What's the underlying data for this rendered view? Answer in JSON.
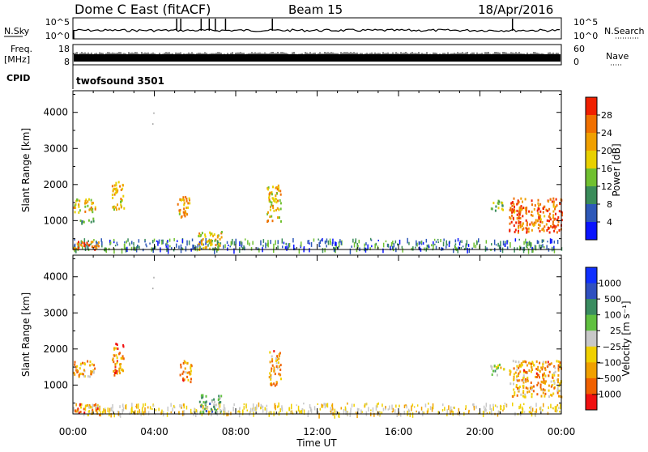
{
  "header": {
    "title": "Dome C East (fitACF)",
    "beam": "Beam 15",
    "date": "18/Apr/2016"
  },
  "strips": {
    "nsky_label": "N.Sky",
    "nsky_ticks": [
      "10^5",
      "10^0"
    ],
    "nsearch_label": "N.Search",
    "nsearch_ticks": [
      "10^5",
      "10^0"
    ],
    "freq_label": "Freq.",
    "freq_unit": "[MHz]",
    "freq_ticks": [
      "18",
      "8"
    ],
    "nave_label": "Nave",
    "nave_ticks": [
      "60",
      "0"
    ],
    "cpid_label": "CPID",
    "cpid_value": "twofsound 3501"
  },
  "chart_data": [
    {
      "type": "heatmap",
      "name": "power",
      "ylabel": "Slant Range [km]",
      "ylim": [
        200,
        4600
      ],
      "yticks": [
        "1000",
        "2000",
        "3000",
        "4000"
      ],
      "colorbar_label": "Power [dB]",
      "colorbar_ticks": [
        "4",
        "8",
        "12",
        "16",
        "20",
        "24",
        "28"
      ],
      "colorbar_colors": [
        "#0a14ff",
        "#2e58b8",
        "#3a8c5a",
        "#70c030",
        "#e8d000",
        "#f0a000",
        "#f07000",
        "#f02000"
      ],
      "patches": [
        {
          "t0": 0.0,
          "t1": 1.3,
          "r0": 200,
          "r1": 450,
          "level": 0.85
        },
        {
          "t0": 0.0,
          "t1": 1.1,
          "r0": 1250,
          "r1": 1650,
          "level": 0.6
        },
        {
          "t0": 0.3,
          "t1": 1.0,
          "r0": 950,
          "r1": 1100,
          "level": 0.35
        },
        {
          "t0": 1.9,
          "t1": 2.5,
          "r0": 1300,
          "r1": 2100,
          "level": 0.65
        },
        {
          "t0": 5.1,
          "t1": 5.8,
          "r0": 1100,
          "r1": 1700,
          "level": 0.7
        },
        {
          "t0": 6.1,
          "t1": 7.3,
          "r0": 200,
          "r1": 750,
          "level": 0.6
        },
        {
          "t0": 9.5,
          "t1": 10.2,
          "r0": 1000,
          "r1": 2000,
          "level": 0.65
        },
        {
          "t0": 20.5,
          "t1": 21.2,
          "r0": 1300,
          "r1": 1600,
          "level": 0.4
        },
        {
          "t0": 21.4,
          "t1": 24.0,
          "r0": 700,
          "r1": 1650,
          "level": 0.85
        }
      ]
    },
    {
      "type": "heatmap",
      "name": "velocity",
      "ylabel": "Slant Range [km]",
      "ylim": [
        200,
        4600
      ],
      "yticks": [
        "1000",
        "2000",
        "3000",
        "4000"
      ],
      "colorbar_label": "Velocity [m s⁻¹]",
      "colorbar_ticks": [
        "1000",
        "500",
        "100",
        "25",
        "−25",
        "−100",
        "−500",
        "−1000"
      ],
      "colorbar_colors": [
        "#1030ff",
        "#3050c0",
        "#3a8c60",
        "#60c040",
        "#c8c8c8",
        "#f0d000",
        "#f0a000",
        "#f06000",
        "#f01010"
      ],
      "patches": [
        {
          "t0": 0.0,
          "t1": 1.3,
          "r0": 200,
          "r1": 500,
          "level": 0.75
        },
        {
          "t0": 0.0,
          "t1": 1.1,
          "r0": 1250,
          "r1": 1700,
          "level": 0.7
        },
        {
          "t0": 1.9,
          "t1": 2.5,
          "r0": 1300,
          "r1": 2200,
          "level": 0.8
        },
        {
          "t0": 5.2,
          "t1": 5.8,
          "r0": 1100,
          "r1": 1700,
          "level": 0.75
        },
        {
          "t0": 6.2,
          "t1": 7.3,
          "r0": 250,
          "r1": 750,
          "level": 0.35
        },
        {
          "t0": 9.6,
          "t1": 10.2,
          "r0": 1000,
          "r1": 2000,
          "level": 0.75
        },
        {
          "t0": 20.5,
          "t1": 21.2,
          "r0": 1300,
          "r1": 1600,
          "level": 0.5
        },
        {
          "t0": 21.4,
          "t1": 24.0,
          "r0": 700,
          "r1": 1700,
          "level": 0.72
        }
      ]
    }
  ],
  "xaxis": {
    "label": "Time UT",
    "xlim": [
      0,
      24
    ],
    "ticks": [
      "00:00",
      "04:00",
      "08:00",
      "12:00",
      "16:00",
      "20:00",
      "00:00"
    ]
  }
}
